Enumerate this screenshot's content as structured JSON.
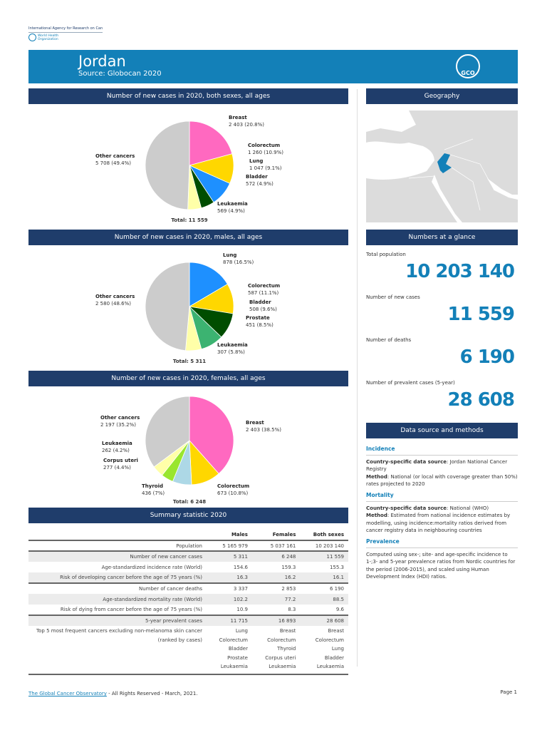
{
  "org": {
    "iarc": "International Agency for Research on Cancer",
    "who": "World Health Organization"
  },
  "banner": {
    "title": "Jordan",
    "source": "Source: Globocan 2020",
    "logo": "GCO"
  },
  "colors": {
    "banner": "#1380b8",
    "section": "#1f3d6b",
    "accent": "#1380b8",
    "breast": "#ff69c0",
    "colorectum": "#ffd700",
    "lung": "#1e90ff",
    "bladder": "#004d00",
    "prostate": "#3cb371",
    "leukaemia": "#ffffa8",
    "thyroid": "#add8e6",
    "corpus": "#99e62e",
    "other": "#cccccc"
  },
  "charts": [
    {
      "title": "Number of new cases in 2020, both sexes, all ages",
      "total": "Total: 11 559",
      "slices": [
        {
          "name": "Breast",
          "value": 2403,
          "text": "2 403 (20.8%)",
          "color": "#ff69c0"
        },
        {
          "name": "Colorectum",
          "value": 1260,
          "text": "1 260 (10.9%)",
          "color": "#ffd700"
        },
        {
          "name": "Lung",
          "value": 1047,
          "text": "1 047 (9.1%)",
          "color": "#1e90ff"
        },
        {
          "name": "Bladder",
          "value": 572,
          "text": "572 (4.9%)",
          "color": "#004d00"
        },
        {
          "name": "Leukaemia",
          "value": 569,
          "text": "569 (4.9%)",
          "color": "#ffffa8"
        },
        {
          "name": "Other cancers",
          "value": 5708,
          "text": "5 708 (49.4%)",
          "color": "#cccccc"
        }
      ]
    },
    {
      "title": "Number of new cases in 2020, males, all ages",
      "total": "Total: 5 311",
      "slices": [
        {
          "name": "Lung",
          "value": 878,
          "text": "878 (16.5%)",
          "color": "#1e90ff"
        },
        {
          "name": "Colorectum",
          "value": 587,
          "text": "587 (11.1%)",
          "color": "#ffd700"
        },
        {
          "name": "Bladder",
          "value": 508,
          "text": "508 (9.6%)",
          "color": "#004d00"
        },
        {
          "name": "Prostate",
          "value": 451,
          "text": "451 (8.5%)",
          "color": "#3cb371"
        },
        {
          "name": "Leukaemia",
          "value": 307,
          "text": "307 (5.8%)",
          "color": "#ffffa8"
        },
        {
          "name": "Other cancers",
          "value": 2580,
          "text": "2 580 (48.6%)",
          "color": "#cccccc"
        }
      ]
    },
    {
      "title": "Number of new cases in 2020, females, all ages",
      "total": "Total: 6 248",
      "slices": [
        {
          "name": "Breast",
          "value": 2403,
          "text": "2 403 (38.5%)",
          "color": "#ff69c0"
        },
        {
          "name": "Colorectum",
          "value": 673,
          "text": "673 (10.8%)",
          "color": "#ffd700"
        },
        {
          "name": "Thyroid",
          "value": 436,
          "text": "436 (7%)",
          "color": "#add8e6"
        },
        {
          "name": "Corpus uteri",
          "value": 277,
          "text": "277 (4.4%)",
          "color": "#99e62e"
        },
        {
          "name": "Leukaemia",
          "value": 262,
          "text": "262 (4.2%)",
          "color": "#ffffa8"
        },
        {
          "name": "Other cancers",
          "value": 2197,
          "text": "2 197 (35.2%)",
          "color": "#cccccc"
        }
      ]
    }
  ],
  "geography": {
    "title": "Geography"
  },
  "glance": {
    "title": "Numbers at a glance",
    "items": [
      {
        "label": "Total population",
        "value": "10 203 140"
      },
      {
        "label": "Number of new cases",
        "value": "11 559"
      },
      {
        "label": "Number of deaths",
        "value": "6 190"
      },
      {
        "label": "Number of prevalent cases (5-year)",
        "value": "28 608"
      }
    ]
  },
  "datasource": {
    "title": "Data source and methods",
    "incidence": {
      "h": "Incidence",
      "src_k": "Country-specific data source",
      "src_v": ": Jordan National Cancer Registry",
      "m_k": "Method",
      "m_v": ": National (or local with coverage greater than 50%) rates projected to 2020"
    },
    "mortality": {
      "h": "Mortality",
      "src_k": "Country-specific data source",
      "src_v": ": National (WHO)",
      "m_k": "Method",
      "m_v": ": Estimated from national incidence estimates by modelling, using incidence:mortality ratios derived from cancer registry data in neighbouring countries"
    },
    "prevalence": {
      "h": "Prevalence",
      "text": "Computed using sex-; site- and age-specific incidence to 1-;3- and 5-year prevalence ratios from Nordic countries for the period (2006-2015), and scaled using Human Development Index (HDI) ratios."
    }
  },
  "summary": {
    "title": "Summary statistic 2020",
    "columns": [
      "Males",
      "Females",
      "Both sexes"
    ],
    "rows": [
      [
        "Population",
        "5 165 979",
        "5 037 161",
        "10 203 140"
      ],
      [
        "Number of new cancer cases",
        "5 311",
        "6 248",
        "11 559"
      ],
      [
        "Age-standardized incidence rate (World)",
        "154.6",
        "159.3",
        "155.3"
      ],
      [
        "Risk of developing cancer before the age of 75 years (%)",
        "16.3",
        "16.2",
        "16.1"
      ],
      [
        "Number of cancer deaths",
        "3 337",
        "2 853",
        "6 190"
      ],
      [
        "Age-standardized mortality rate (World)",
        "102.2",
        "77.2",
        "88.5"
      ],
      [
        "Risk of dying from cancer before the age of 75 years (%)",
        "10.9",
        "8.3",
        "9.6"
      ],
      [
        "5-year prevalent cases",
        "11 715",
        "16 893",
        "28 608"
      ]
    ],
    "top5_label": [
      "Top 5 most frequent cancers excluding non-melanoma skin cancer",
      "(ranked by cases)"
    ],
    "top5": [
      [
        "Lung",
        "Colorectum",
        "Bladder",
        "Prostate",
        "Leukaemia"
      ],
      [
        "Breast",
        "Colorectum",
        "Thyroid",
        "Corpus uteri",
        "Leukaemia"
      ],
      [
        "Breast",
        "Colorectum",
        "Lung",
        "Bladder",
        "Leukaemia"
      ]
    ]
  },
  "footer": {
    "link": "The Global Cancer Observatory",
    "rest": " - All Rights Reserved - March, 2021.",
    "page": "Page 1"
  }
}
